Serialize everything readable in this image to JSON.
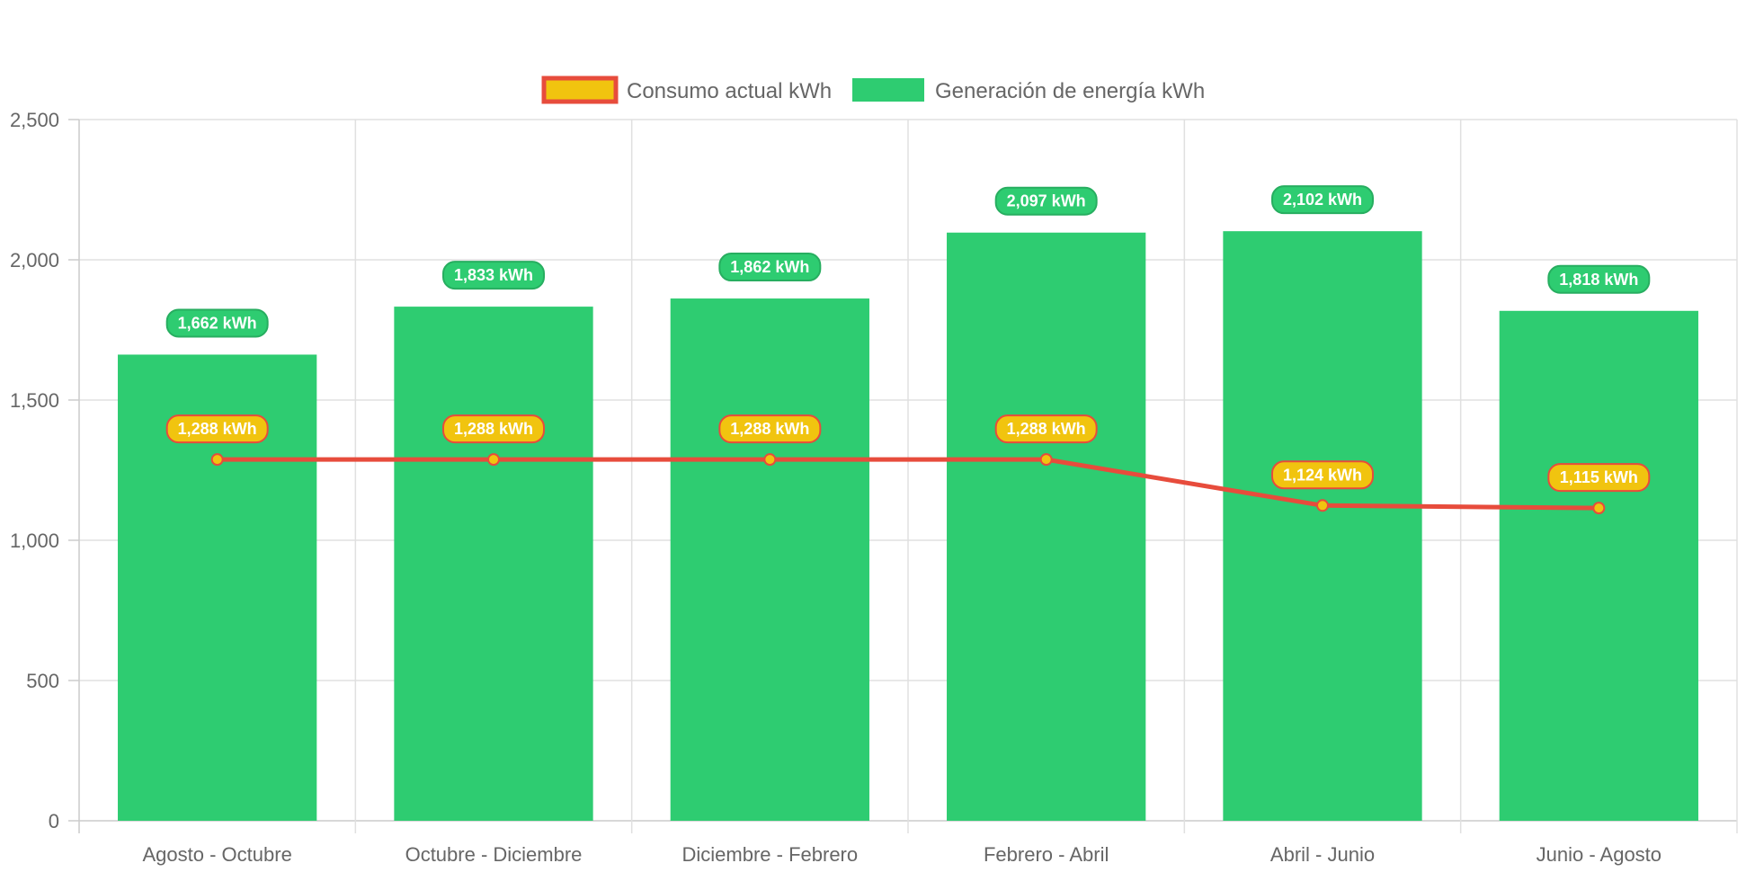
{
  "chart_data": {
    "type": "bar",
    "title": "",
    "xlabel": "",
    "ylabel": "",
    "categories": [
      "Agosto - Octubre",
      "Octubre - Diciembre",
      "Diciembre - Febrero",
      "Febrero - Abril",
      "Abril - Junio",
      "Junio - Agosto"
    ],
    "ylim": [
      0,
      2500
    ],
    "yticks": [
      0,
      500,
      1000,
      1500,
      2000,
      2500
    ],
    "ytick_labels": [
      "0",
      "500",
      "1,000",
      "1,500",
      "2,000",
      "2,500"
    ],
    "grid": true,
    "legend_position": "top-center",
    "series": [
      {
        "name": "Consumo actual kWh",
        "type": "line",
        "values": [
          1288,
          1288,
          1288,
          1288,
          1124,
          1115
        ],
        "labels": [
          "1,288 kWh",
          "1,288 kWh",
          "1,288 kWh",
          "1,288 kWh",
          "1,124 kWh",
          "1,115 kWh"
        ],
        "line_color": "#e74c3c",
        "fill_color": "#f1c40f"
      },
      {
        "name": "Generación de energía kWh",
        "type": "bar",
        "values": [
          1662,
          1833,
          1862,
          2097,
          2102,
          1818
        ],
        "labels": [
          "1,662 kWh",
          "1,833 kWh",
          "1,862 kWh",
          "2,097 kWh",
          "2,102 kWh",
          "1,818 kWh"
        ],
        "color": "#2ecc71",
        "border_color": "#27ae60"
      }
    ]
  }
}
